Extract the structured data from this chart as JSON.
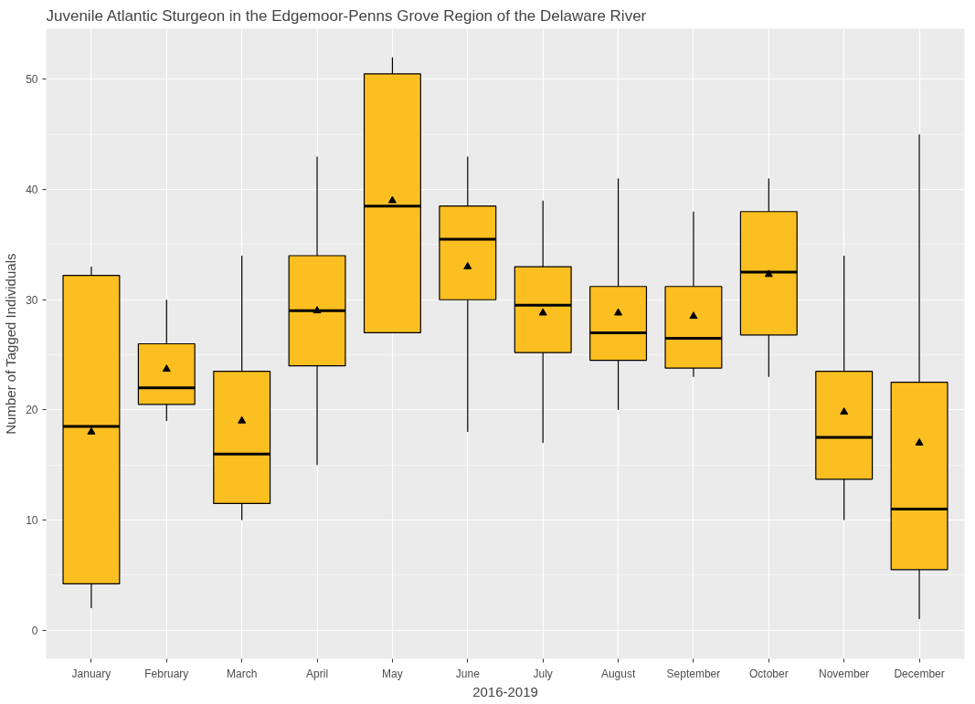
{
  "chart_data": {
    "type": "box",
    "title": "Juvenile Atlantic Sturgeon in the Edgemoor-Penns Grove Region of the Delaware River",
    "xlabel": "2016-2019",
    "ylabel": "Number of Tagged Individuals",
    "categories": [
      "January",
      "February",
      "March",
      "April",
      "May",
      "June",
      "July",
      "August",
      "September",
      "October",
      "November",
      "December"
    ],
    "color": "#fcbf21",
    "boxes": [
      {
        "low": 2,
        "q1": 4.2,
        "median": 18.5,
        "q3": 32.2,
        "high": 33,
        "mean": 18
      },
      {
        "low": 19,
        "q1": 20.5,
        "median": 22,
        "q3": 26,
        "high": 30,
        "mean": 23.7
      },
      {
        "low": 10,
        "q1": 11.5,
        "median": 16,
        "q3": 23.5,
        "high": 34,
        "mean": 19
      },
      {
        "low": 15,
        "q1": 24,
        "median": 29,
        "q3": 34,
        "high": 43,
        "mean": 29
      },
      {
        "low": 27,
        "q1": 27,
        "median": 38.5,
        "q3": 50.5,
        "high": 52,
        "mean": 39
      },
      {
        "low": 18,
        "q1": 30,
        "median": 35.5,
        "q3": 38.5,
        "high": 43,
        "mean": 33
      },
      {
        "low": 17,
        "q1": 25.2,
        "median": 29.5,
        "q3": 33,
        "high": 39,
        "mean": 28.8
      },
      {
        "low": 20,
        "q1": 24.5,
        "median": 27,
        "q3": 31.2,
        "high": 41,
        "mean": 28.8
      },
      {
        "low": 23,
        "q1": 23.8,
        "median": 26.5,
        "q3": 31.2,
        "high": 38,
        "mean": 28.5
      },
      {
        "low": 23,
        "q1": 26.8,
        "median": 32.5,
        "q3": 38,
        "high": 41,
        "mean": 32.3
      },
      {
        "low": 10,
        "q1": 13.7,
        "median": 17.5,
        "q3": 23.5,
        "high": 34,
        "mean": 19.8
      },
      {
        "low": 1,
        "q1": 5.5,
        "median": 11,
        "q3": 22.5,
        "high": 45,
        "mean": 17
      }
    ],
    "ylim": [
      -2.6,
      54.6
    ],
    "yticks": [
      0,
      10,
      20,
      30,
      40,
      50
    ],
    "grid": true,
    "marker": "triangle"
  }
}
